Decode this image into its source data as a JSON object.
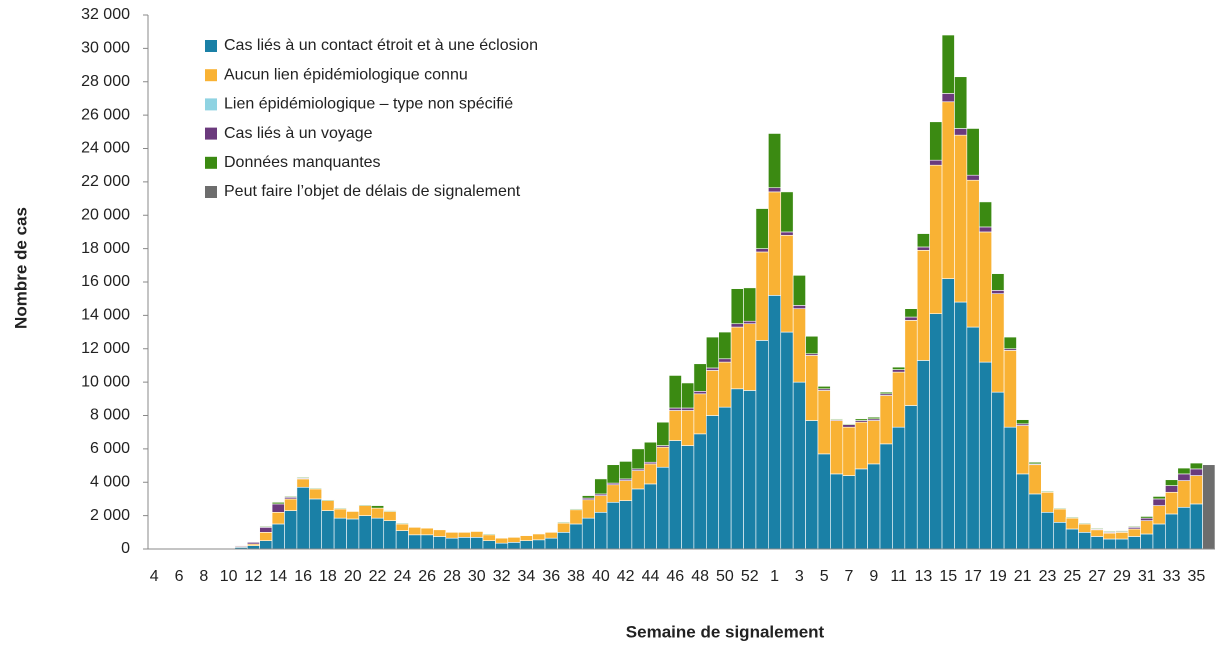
{
  "chart_data": {
    "type": "stacked-bar",
    "x_label": "Semaine de signalement",
    "y_label": "Nombre de cas",
    "categories": [
      "4",
      null,
      "6",
      null,
      "8",
      null,
      "10",
      null,
      "12",
      null,
      "14",
      null,
      "16",
      null,
      "18",
      null,
      "20",
      null,
      "22",
      null,
      "24",
      null,
      "26",
      null,
      "28",
      null,
      "30",
      null,
      "32",
      null,
      "34",
      null,
      "36",
      null,
      "38",
      null,
      "40",
      null,
      "42",
      null,
      "44",
      null,
      "46",
      null,
      "48",
      null,
      "50",
      null,
      "52",
      null,
      "1",
      null,
      "3",
      null,
      "5",
      null,
      "7",
      null,
      "9",
      null,
      "11",
      null,
      "13",
      null,
      "15",
      null,
      "17",
      null,
      "19",
      null,
      "21",
      null,
      "23",
      null,
      "25",
      null,
      "27",
      null,
      "29",
      null,
      "31",
      null,
      "33",
      null,
      "35",
      null
    ],
    "ylim": [
      0,
      32000
    ],
    "yticks": [
      0,
      {
        "value": 2000,
        "label": "2 000"
      },
      {
        "value": 4000,
        "label": "4 000"
      },
      {
        "value": 6000,
        "label": "6 000"
      },
      {
        "value": 8000,
        "label": "8 000"
      },
      {
        "value": 10000,
        "label": "10 000"
      },
      {
        "value": 12000,
        "label": "12 000"
      },
      {
        "value": 14000,
        "label": "14 000"
      },
      {
        "value": 16000,
        "label": "16 000"
      },
      {
        "value": 18000,
        "label": "18 000"
      },
      {
        "value": 20000,
        "label": "20 000"
      },
      {
        "value": 22000,
        "label": "22 000"
      },
      {
        "value": 24000,
        "label": "24 000"
      },
      {
        "value": 26000,
        "label": "26 000"
      },
      {
        "value": 28000,
        "label": "28 000"
      },
      {
        "value": 30000,
        "label": "30 000"
      },
      {
        "value": 32000,
        "label": "32 000"
      }
    ],
    "grid": false,
    "legend": "top-left",
    "series": [
      {
        "name": "Cas liés à un contact étroit et à une éclosion",
        "color": "#1a80a6",
        "values": [
          0,
          0,
          0,
          0,
          10,
          20,
          30,
          100,
          200,
          500,
          1500,
          2300,
          3700,
          3000,
          2300,
          1850,
          1800,
          2000,
          1850,
          1700,
          1100,
          850,
          850,
          750,
          650,
          700,
          700,
          500,
          350,
          400,
          500,
          550,
          650,
          1000,
          1500,
          1850,
          2200,
          2800,
          2900,
          3600,
          3900,
          4900,
          6500,
          6200,
          6900,
          8000,
          8500,
          9600,
          9500,
          12500,
          15200,
          13000,
          10000,
          7700,
          5700,
          4500,
          4400,
          4800,
          5100,
          6300,
          7300,
          8600,
          11300,
          14100,
          16200,
          14800,
          13300,
          11200,
          9400,
          7300,
          4500,
          3300,
          2200,
          1600,
          1200,
          1000,
          750,
          600,
          600,
          750,
          900,
          1500,
          2100,
          2500,
          2700,
          null
        ]
      },
      {
        "name": "Aucun lien épidémiologique connu",
        "color": "#f9b234",
        "values": [
          0,
          0,
          0,
          0,
          0,
          0,
          0,
          50,
          100,
          500,
          700,
          700,
          500,
          600,
          600,
          550,
          450,
          600,
          600,
          550,
          400,
          450,
          400,
          400,
          350,
          300,
          350,
          350,
          300,
          300,
          300,
          350,
          350,
          550,
          850,
          1100,
          1000,
          1050,
          1200,
          1100,
          1200,
          1200,
          1800,
          2100,
          2400,
          2700,
          2700,
          3700,
          4000,
          5300,
          6200,
          5800,
          4400,
          3900,
          3800,
          3200,
          2900,
          2800,
          2600,
          2900,
          3300,
          5100,
          6600,
          8900,
          10600,
          10000,
          8800,
          7800,
          5900,
          4600,
          2900,
          1750,
          1200,
          800,
          650,
          500,
          400,
          350,
          400,
          450,
          800,
          1100,
          1300,
          1600,
          1700,
          null
        ]
      },
      {
        "name": "Lien épidémiologique – type non spécifié",
        "color": "#8fd3e2",
        "values": [
          0,
          0,
          0,
          0,
          0,
          0,
          0,
          0,
          0,
          0,
          0,
          0,
          0,
          0,
          0,
          0,
          0,
          0,
          0,
          0,
          0,
          0,
          0,
          0,
          0,
          0,
          0,
          0,
          0,
          0,
          0,
          0,
          0,
          0,
          0,
          0,
          0,
          0,
          0,
          0,
          0,
          0,
          0,
          0,
          0,
          0,
          0,
          0,
          0,
          0,
          0,
          0,
          0,
          0,
          0,
          0,
          0,
          0,
          0,
          0,
          0,
          0,
          0,
          0,
          0,
          0,
          0,
          0,
          0,
          0,
          0,
          0,
          0,
          0,
          0,
          0,
          0,
          0,
          0,
          0,
          0,
          0,
          0,
          0,
          0,
          null
        ]
      },
      {
        "name": "Cas liés à un voyage",
        "color": "#6b3a7d",
        "values": [
          0,
          0,
          0,
          0,
          0,
          0,
          0,
          50,
          100,
          300,
          500,
          100,
          50,
          0,
          0,
          0,
          0,
          0,
          0,
          0,
          0,
          0,
          0,
          0,
          0,
          0,
          0,
          0,
          0,
          0,
          0,
          0,
          0,
          0,
          0,
          100,
          100,
          100,
          100,
          100,
          100,
          100,
          150,
          150,
          150,
          150,
          200,
          200,
          150,
          200,
          250,
          200,
          200,
          100,
          100,
          50,
          150,
          100,
          100,
          100,
          150,
          200,
          200,
          300,
          500,
          400,
          300,
          300,
          200,
          100,
          100,
          50,
          0,
          0,
          0,
          0,
          50,
          50,
          50,
          100,
          150,
          400,
          400,
          400,
          400,
          null
        ]
      },
      {
        "name": "Données manquantes",
        "color": "#3b8a12",
        "values": [
          0,
          0,
          0,
          0,
          0,
          0,
          0,
          0,
          0,
          50,
          100,
          50,
          50,
          50,
          50,
          50,
          0,
          50,
          150,
          50,
          50,
          0,
          0,
          0,
          0,
          0,
          0,
          50,
          0,
          0,
          0,
          0,
          0,
          50,
          50,
          150,
          900,
          1100,
          1050,
          1200,
          1200,
          1400,
          1950,
          1500,
          1650,
          1850,
          1600,
          2100,
          2000,
          2400,
          3250,
          2400,
          1800,
          1050,
          150,
          50,
          50,
          100,
          100,
          100,
          150,
          500,
          800,
          2300,
          3500,
          3100,
          2800,
          1500,
          1000,
          700,
          250,
          100,
          50,
          50,
          50,
          50,
          50,
          50,
          50,
          50,
          100,
          150,
          350,
          350,
          350,
          null
        ]
      },
      {
        "name": "Peut faire l’objet de délais de signalement",
        "color": "#6d6d6d",
        "values": [
          null,
          null,
          null,
          null,
          null,
          null,
          null,
          null,
          null,
          null,
          null,
          null,
          null,
          null,
          null,
          null,
          null,
          null,
          null,
          null,
          null,
          null,
          null,
          null,
          null,
          null,
          null,
          null,
          null,
          null,
          null,
          null,
          null,
          null,
          null,
          null,
          null,
          null,
          null,
          null,
          null,
          null,
          null,
          null,
          null,
          null,
          null,
          null,
          null,
          null,
          null,
          null,
          null,
          null,
          null,
          null,
          null,
          null,
          null,
          null,
          null,
          null,
          null,
          null,
          null,
          null,
          null,
          null,
          null,
          null,
          null,
          null,
          null,
          null,
          null,
          null,
          null,
          null,
          null,
          null,
          null,
          null,
          null,
          null,
          null,
          5050
        ]
      }
    ]
  }
}
